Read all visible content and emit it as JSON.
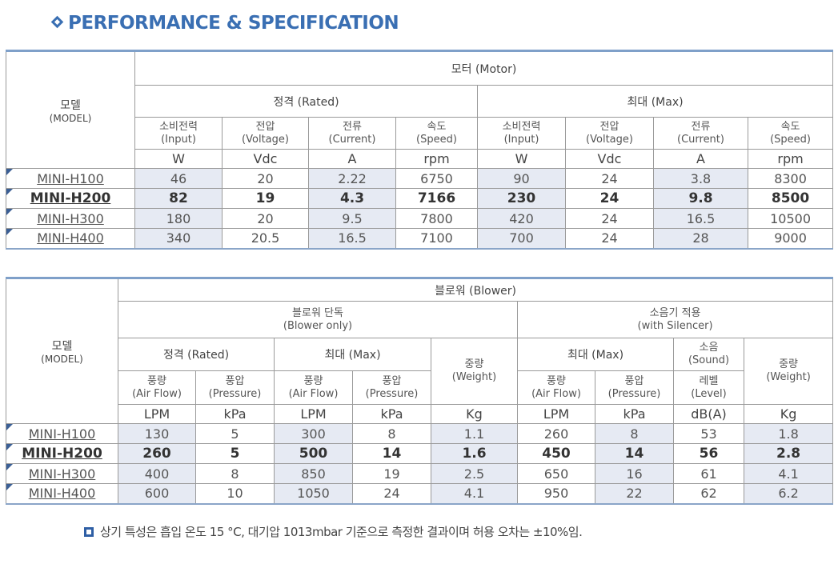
{
  "title": "PERFORMANCE & SPECIFICATION",
  "motor_table": {
    "model_label": "모델",
    "model_label_en": "(MODEL)",
    "group": "모터 (Motor)",
    "rated": "정격 (Rated)",
    "max": "최대 (Max)",
    "cols": [
      {
        "ko": "소비전력",
        "en": "(Input)",
        "unit": "W"
      },
      {
        "ko": "전압",
        "en": "(Voltage)",
        "unit": "Vdc"
      },
      {
        "ko": "전류",
        "en": "(Current)",
        "unit": "A"
      },
      {
        "ko": "속도",
        "en": "(Speed)",
        "unit": "rpm"
      },
      {
        "ko": "소비전력",
        "en": "(Input)",
        "unit": "W"
      },
      {
        "ko": "전압",
        "en": "(Voltage)",
        "unit": "Vdc"
      },
      {
        "ko": "전류",
        "en": "(Current)",
        "unit": "A"
      },
      {
        "ko": "속도",
        "en": "(Speed)",
        "unit": "rpm"
      }
    ],
    "rows": [
      {
        "model": "MINI-H100",
        "values": [
          "46",
          "20",
          "2.22",
          "6750",
          "90",
          "24",
          "3.8",
          "8300"
        ]
      },
      {
        "model": "MINI-H200",
        "values": [
          "82",
          "19",
          "4.3",
          "7166",
          "230",
          "24",
          "9.8",
          "8500"
        ]
      },
      {
        "model": "MINI-H300",
        "values": [
          "180",
          "20",
          "9.5",
          "7800",
          "420",
          "24",
          "16.5",
          "10500"
        ]
      },
      {
        "model": "MINI-H400",
        "values": [
          "340",
          "20.5",
          "16.5",
          "7100",
          "700",
          "24",
          "28",
          "9000"
        ]
      }
    ]
  },
  "blower_table": {
    "model_label": "모델",
    "model_label_en": "(MODEL)",
    "group": "블로워 (Blower)",
    "blower_only_ko": "블로워 단독",
    "blower_only_en": "(Blower only)",
    "silencer_ko": "소음기 적용",
    "silencer_en": "(with Silencer)",
    "rated": "정격 (Rated)",
    "max": "최대 (Max)",
    "max2": "최대 (Max)",
    "weight_ko": "중량",
    "weight_en": "(Weight)",
    "sound_ko": "소음",
    "sound_en": "(Sound)",
    "cols": [
      {
        "ko": "풍량",
        "en": "(Air Flow)",
        "unit": "LPM"
      },
      {
        "ko": "풍압",
        "en": "(Pressure)",
        "unit": "kPa"
      },
      {
        "ko": "풍량",
        "en": "(Air Flow)",
        "unit": "LPM"
      },
      {
        "ko": "풍압",
        "en": "(Pressure)",
        "unit": "kPa"
      },
      {
        "ko": "",
        "en": "",
        "unit": "Kg"
      },
      {
        "ko": "풍량",
        "en": "(Air Flow)",
        "unit": "LPM"
      },
      {
        "ko": "풍압",
        "en": "(Pressure)",
        "unit": "kPa"
      },
      {
        "ko": "레벨",
        "en": "(Level)",
        "unit": "dB(A)"
      },
      {
        "ko": "",
        "en": "",
        "unit": "Kg"
      }
    ],
    "rows": [
      {
        "model": "MINI-H100",
        "values": [
          "130",
          "5",
          "300",
          "8",
          "1.1",
          "260",
          "8",
          "53",
          "1.8"
        ]
      },
      {
        "model": "MINI-H200",
        "values": [
          "260",
          "5",
          "500",
          "14",
          "1.6",
          "450",
          "14",
          "56",
          "2.8"
        ]
      },
      {
        "model": "MINI-H300",
        "values": [
          "400",
          "8",
          "850",
          "19",
          "2.5",
          "650",
          "16",
          "61",
          "4.1"
        ]
      },
      {
        "model": "MINI-H400",
        "values": [
          "600",
          "10",
          "1050",
          "24",
          "4.1",
          "950",
          "22",
          "62",
          "6.2"
        ]
      }
    ]
  },
  "note": "상기 특성은 흡입 온도 15 °C,  대기압 1013mbar 기준으로 측정한 결과이며 허용 오차는 ±10%임."
}
